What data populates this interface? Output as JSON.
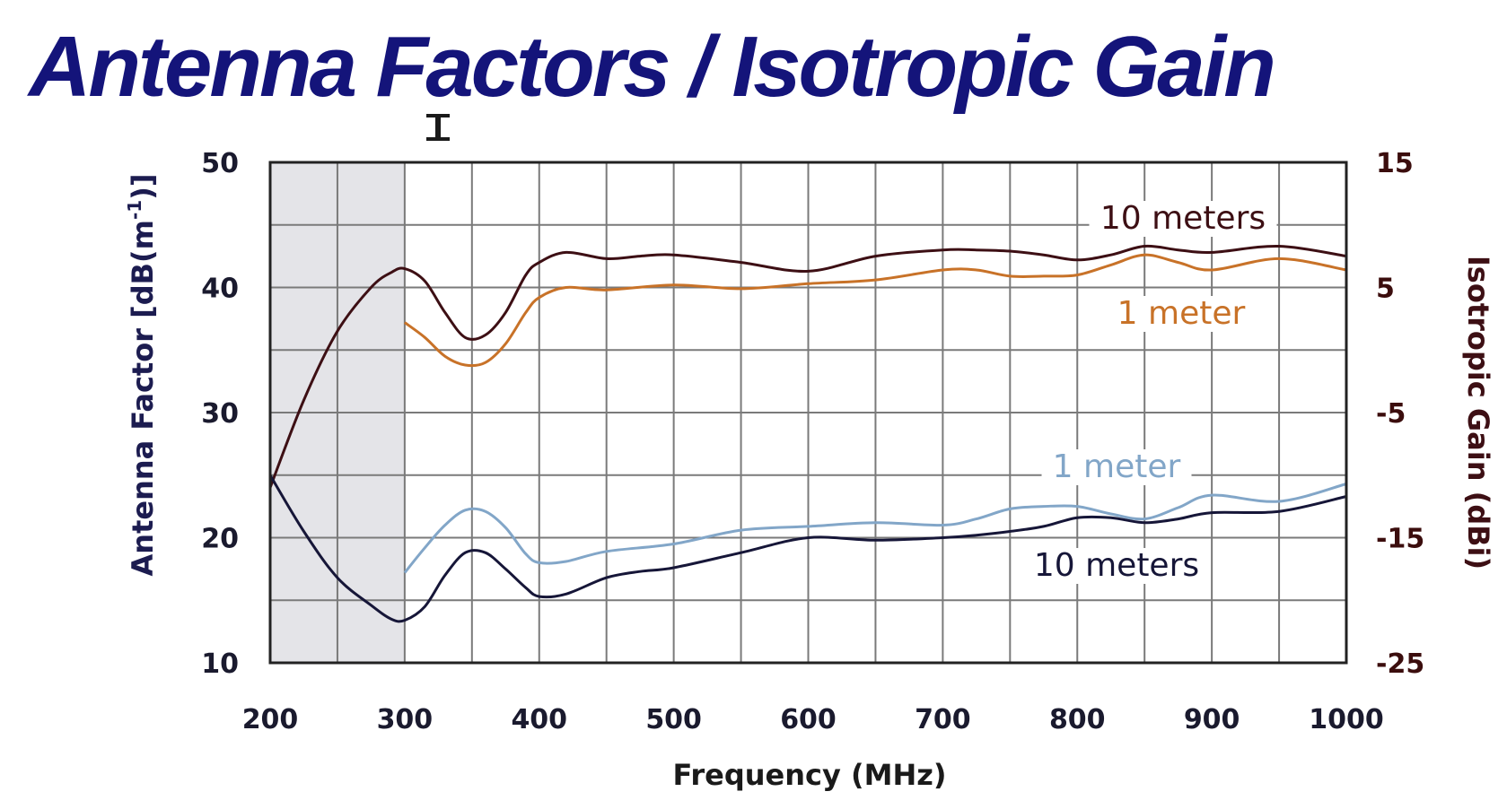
{
  "chart_data": {
    "type": "line",
    "title": "Antenna Factors / Isotropic Gain",
    "xlabel": "Frequency (MHz)",
    "ylabel": "Antenna Factor [dB(m-1)]",
    "ylabel_parts": {
      "main": "Antenna Factor [dB(m",
      "sup": "-1",
      "tail": ")]"
    },
    "y2label": "Isotropic Gain (dBi)",
    "xlim": [
      200,
      1000
    ],
    "ylim": [
      10,
      50
    ],
    "y2lim": [
      -25,
      15
    ],
    "x_ticks": [
      "200",
      "300",
      "400",
      "500",
      "600",
      "700",
      "800",
      "900",
      "1000"
    ],
    "y_ticks": [
      "10",
      "20",
      "30",
      "40",
      "50"
    ],
    "y2_ticks": [
      "-25",
      "-15",
      "-5",
      "5",
      "15"
    ],
    "grid": true,
    "shaded_region_x": [
      200,
      300
    ],
    "series": [
      {
        "name": "10 meters",
        "axis": "right",
        "color": "#3d0f14",
        "x": [
          200,
          225,
          250,
          275,
          290,
          300,
          315,
          330,
          345,
          360,
          375,
          390,
          400,
          420,
          450,
          475,
          500,
          550,
          600,
          650,
          700,
          725,
          750,
          775,
          800,
          825,
          850,
          875,
          900,
          950,
          1000
        ],
        "values": [
          -11,
          -4,
          1.5,
          5,
          6.2,
          6.5,
          5.5,
          3,
          1,
          1.2,
          3,
          6,
          7,
          7.8,
          7.3,
          7.5,
          7.6,
          7,
          6.3,
          7.5,
          8,
          8,
          7.9,
          7.6,
          7.2,
          7.6,
          8.3,
          8,
          7.8,
          8.3,
          7.5
        ]
      },
      {
        "name": "1 meter",
        "axis": "right",
        "color": "#c87228",
        "x": [
          300,
          315,
          330,
          345,
          360,
          375,
          390,
          400,
          420,
          450,
          500,
          550,
          600,
          650,
          700,
          725,
          750,
          775,
          800,
          825,
          850,
          875,
          900,
          950,
          1000
        ],
        "values": [
          2.2,
          1,
          -0.5,
          -1.2,
          -1,
          0.5,
          3,
          4.2,
          5,
          4.8,
          5.2,
          4.9,
          5.3,
          5.6,
          6.4,
          6.4,
          5.9,
          5.9,
          6,
          6.8,
          7.6,
          7,
          6.4,
          7.3,
          6.4
        ]
      },
      {
        "name": "1 meter",
        "axis": "left",
        "color": "#82a6c8",
        "x": [
          300,
          315,
          330,
          345,
          360,
          375,
          390,
          400,
          420,
          450,
          500,
          550,
          600,
          650,
          700,
          725,
          750,
          775,
          800,
          825,
          850,
          875,
          900,
          950,
          1000
        ],
        "values": [
          17.2,
          19.2,
          21,
          22.2,
          22.1,
          20.8,
          18.7,
          18,
          18.1,
          18.9,
          19.5,
          20.6,
          20.9,
          21.2,
          21,
          21.5,
          22.3,
          22.5,
          22.5,
          21.9,
          21.5,
          22.4,
          23.4,
          22.9,
          24.3
        ]
      },
      {
        "name": "10 meters",
        "axis": "left",
        "color": "#161638",
        "x": [
          200,
          225,
          250,
          275,
          290,
          300,
          315,
          330,
          345,
          360,
          375,
          390,
          400,
          420,
          450,
          475,
          500,
          550,
          600,
          650,
          700,
          725,
          750,
          775,
          800,
          825,
          850,
          875,
          900,
          950,
          1000
        ],
        "values": [
          25,
          20.5,
          16.8,
          14.6,
          13.5,
          13.4,
          14.5,
          17,
          18.8,
          18.8,
          17.5,
          16,
          15.3,
          15.5,
          16.8,
          17.3,
          17.6,
          18.8,
          20,
          19.8,
          20,
          20.2,
          20.5,
          20.9,
          21.6,
          21.6,
          21.2,
          21.5,
          22,
          22.1,
          23.3
        ]
      }
    ]
  },
  "colors": {
    "title": "#14147a",
    "left_axis_title": "#1c1c50",
    "right_axis_title": "#3d0f14",
    "shade": "#e4e4e8",
    "grid": "#7a7a7a",
    "frame": "#222222"
  },
  "decorations": {
    "cursor_icon": "text-cursor-icon"
  }
}
